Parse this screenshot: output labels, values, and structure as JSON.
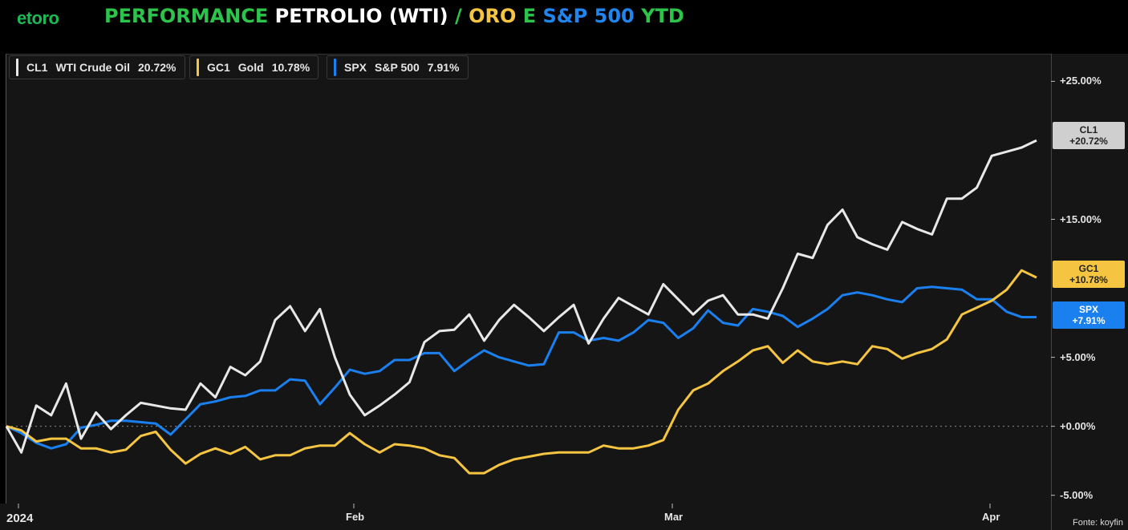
{
  "brand": {
    "logo": "etoro",
    "color": "#1db954"
  },
  "title": {
    "parts": [
      {
        "text": "PERFORMANCE ",
        "color": "#2cc44a"
      },
      {
        "text": "PETROLIO (WTI) ",
        "color": "#ffffff"
      },
      {
        "text": "/ ",
        "color": "#2cc44a"
      },
      {
        "text": "ORO ",
        "color": "#f5c542"
      },
      {
        "text": "E ",
        "color": "#2cc44a"
      },
      {
        "text": "S&P 500 ",
        "color": "#1f86f0"
      },
      {
        "text": "YTD",
        "color": "#2cc44a"
      }
    ]
  },
  "source": "Fonte: koyfin",
  "chart_data": {
    "type": "line",
    "x_tick_labels": [
      "2024",
      "Feb",
      "Mar",
      "Apr"
    ],
    "y_tick_labels": [
      "+25.00%",
      "+15.00%",
      "+5.00%",
      "+0.00%",
      "-5.00%"
    ],
    "y_ticks": [
      25,
      15,
      5,
      0,
      -5
    ],
    "ylim": [
      -5.6,
      27
    ],
    "n_points": 70,
    "series": [
      {
        "name": "WTI Crude Oil",
        "ticker": "CL1",
        "value_label": "20.72%",
        "badge": "+20.72%",
        "color": "#e8e8e8",
        "text_color": "#222222",
        "values": [
          0,
          -1.9,
          1.5,
          0.8,
          3.1,
          -0.9,
          1.0,
          -0.2,
          0.8,
          1.7,
          1.5,
          1.3,
          1.2,
          3.1,
          2.1,
          4.3,
          3.7,
          4.7,
          7.7,
          8.7,
          6.9,
          8.5,
          5.0,
          2.3,
          0.8,
          1.5,
          2.3,
          3.2,
          6.1,
          6.9,
          7.0,
          8.1,
          6.2,
          7.7,
          8.8,
          7.9,
          6.9,
          7.9,
          8.8,
          6.0,
          7.8,
          9.3,
          8.7,
          8.1,
          10.3,
          9.2,
          8.1,
          9.1,
          9.5,
          8.1,
          8.1,
          7.8,
          10.0,
          12.5,
          12.2,
          14.6,
          15.7,
          13.7,
          13.2,
          12.8,
          14.8,
          14.3,
          13.9,
          16.5,
          16.5,
          17.3,
          19.6,
          19.9,
          20.2,
          20.72
        ]
      },
      {
        "name": "Gold",
        "ticker": "GC1",
        "value_label": "10.78%",
        "badge": "+10.78%",
        "color": "#f5c542",
        "text_color": "#222222",
        "values": [
          0,
          -0.3,
          -1.1,
          -0.9,
          -0.9,
          -1.6,
          -1.6,
          -1.9,
          -1.7,
          -0.7,
          -0.4,
          -1.7,
          -2.7,
          -2.0,
          -1.6,
          -2.0,
          -1.5,
          -2.4,
          -2.1,
          -2.1,
          -1.6,
          -1.4,
          -1.4,
          -0.5,
          -1.3,
          -1.9,
          -1.3,
          -1.4,
          -1.6,
          -2.1,
          -2.3,
          -3.4,
          -3.4,
          -2.8,
          -2.4,
          -2.2,
          -2.0,
          -1.9,
          -1.9,
          -1.9,
          -1.4,
          -1.6,
          -1.6,
          -1.4,
          -1.0,
          1.2,
          2.6,
          3.1,
          4.0,
          4.7,
          5.5,
          5.8,
          4.6,
          5.5,
          4.7,
          4.5,
          4.7,
          4.5,
          5.8,
          5.6,
          4.9,
          5.3,
          5.6,
          6.3,
          8.1,
          8.6,
          9.1,
          9.9,
          11.3,
          10.78
        ]
      },
      {
        "name": "S&P 500",
        "ticker": "SPX",
        "value_label": "7.91%",
        "badge": "+7.91%",
        "color": "#1a80f0",
        "text_color": "#ffffff",
        "values": [
          0,
          -0.5,
          -1.2,
          -1.6,
          -1.3,
          -0.1,
          0.1,
          0.4,
          0.4,
          0.3,
          0.2,
          -0.6,
          0.5,
          1.6,
          1.8,
          2.1,
          2.2,
          2.6,
          2.6,
          3.4,
          3.3,
          1.6,
          2.8,
          4.1,
          3.8,
          4.0,
          4.8,
          4.8,
          5.3,
          5.3,
          4.0,
          4.8,
          5.5,
          5.0,
          4.7,
          4.4,
          4.5,
          6.8,
          6.8,
          6.2,
          6.4,
          6.2,
          6.8,
          7.7,
          7.5,
          6.4,
          7.1,
          8.4,
          7.5,
          7.3,
          8.5,
          8.3,
          8.0,
          7.2,
          7.8,
          8.5,
          9.5,
          9.7,
          9.5,
          9.2,
          9.0,
          10.0,
          10.1,
          10.0,
          9.9,
          9.2,
          9.2,
          8.3,
          7.91,
          7.91
        ]
      }
    ]
  }
}
